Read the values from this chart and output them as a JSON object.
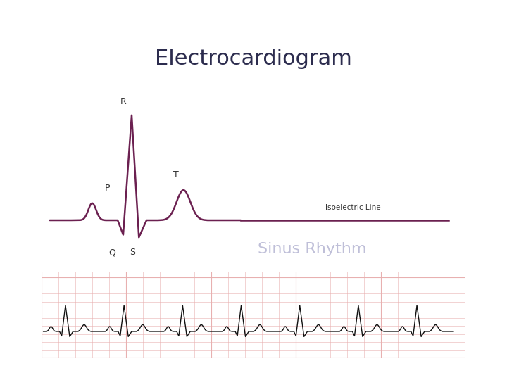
{
  "title": "Electrocardiogram",
  "title_fontsize": 22,
  "title_color": "#2c2c4e",
  "title_fontweight": "normal",
  "bg_color": "#ffffff",
  "outer_box_color": "#5a5a8a",
  "inner_ecg_bg": "#ffffff",
  "ecg_color": "#6b2050",
  "ecg_linewidth": 1.8,
  "label_color": "#333333",
  "label_fontsize": 9,
  "isoelectric_label": "Isoelectric Line",
  "sinus_rhythm_label": "Sinus Rhythm",
  "sinus_rhythm_color": "#aaaacc",
  "sinus_rhythm_fontsize": 16,
  "grid_color_major": "#e8b0b0",
  "grid_color_minor": "#f5d5d5",
  "ecg_strip_bg": "#fff5f5",
  "strip_ecg_color": "#111111",
  "header_top_color": "#3a3a5c",
  "header_teal_color": "#3a8a8a",
  "header_light_color": "#a0c0c0"
}
